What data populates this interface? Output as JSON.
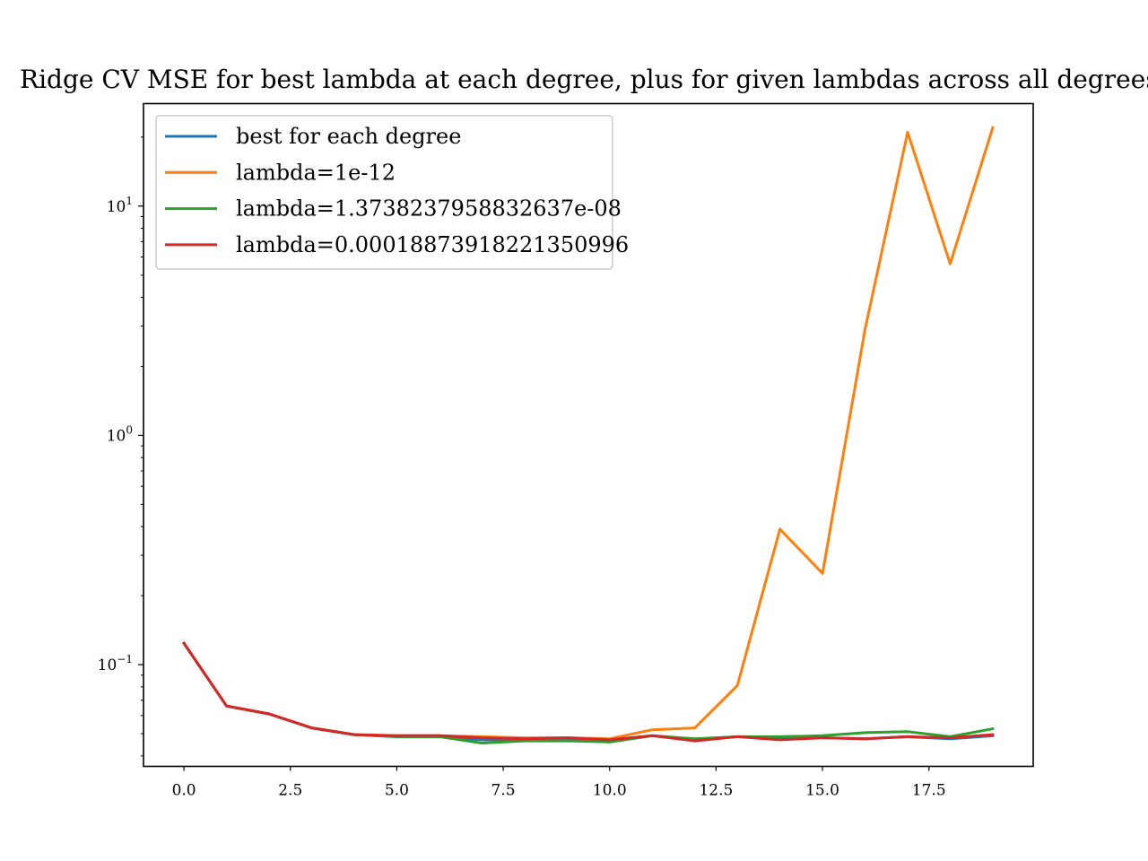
{
  "chart_data": {
    "type": "line",
    "title": "Ridge CV MSE for best lambda at each degree, plus for given lambdas across all degrees",
    "xlabel": "",
    "ylabel": "",
    "yscale": "log",
    "xlim": [
      -0.95,
      19.95
    ],
    "ylim": [
      0.036,
      28
    ],
    "xticks": [
      0.0,
      2.5,
      5.0,
      7.5,
      10.0,
      12.5,
      15.0,
      17.5
    ],
    "xtick_labels": [
      "0.0",
      "2.5",
      "5.0",
      "7.5",
      "10.0",
      "12.5",
      "15.0",
      "17.5"
    ],
    "yticks": [
      0.1,
      1,
      10
    ],
    "ytick_labels": [
      {
        "base": "10",
        "exp": "−1"
      },
      {
        "base": "10",
        "exp": "0"
      },
      {
        "base": "10",
        "exp": "1"
      }
    ],
    "grid": false,
    "legend_position": "upper-left",
    "x": [
      0,
      1,
      2,
      3,
      4,
      5,
      6,
      7,
      8,
      9,
      10,
      11,
      12,
      13,
      14,
      15,
      16,
      17,
      18,
      19
    ],
    "series": [
      {
        "name": "best for each degree",
        "color": "#1f77b4",
        "values": [
          0.124,
          0.066,
          0.061,
          0.053,
          0.0495,
          0.0485,
          0.0485,
          0.047,
          0.047,
          0.0475,
          0.046,
          0.049,
          0.047,
          0.0485,
          0.0475,
          0.048,
          0.0475,
          0.0485,
          0.0475,
          0.049
        ]
      },
      {
        "name": "lambda=1e-12",
        "color": "#ff7f0e",
        "values": [
          0.124,
          0.066,
          0.061,
          0.053,
          0.0495,
          0.049,
          0.049,
          0.0485,
          0.048,
          0.048,
          0.0475,
          0.052,
          0.053,
          0.081,
          0.39,
          0.25,
          2.9,
          21,
          5.6,
          22
        ]
      },
      {
        "name": "lambda=1.3738237958832637e-08",
        "color": "#2ca02c",
        "values": [
          0.124,
          0.066,
          0.061,
          0.053,
          0.0495,
          0.0485,
          0.0485,
          0.0455,
          0.0465,
          0.0465,
          0.046,
          0.049,
          0.0475,
          0.0485,
          0.0485,
          0.049,
          0.0505,
          0.051,
          0.0485,
          0.0525
        ]
      },
      {
        "name": "lambda=0.00018873918221350996",
        "color": "#d62728",
        "values": [
          0.124,
          0.066,
          0.061,
          0.053,
          0.0495,
          0.049,
          0.049,
          0.048,
          0.0475,
          0.048,
          0.047,
          0.049,
          0.0465,
          0.0485,
          0.047,
          0.048,
          0.0475,
          0.0485,
          0.048,
          0.0495
        ]
      }
    ]
  }
}
